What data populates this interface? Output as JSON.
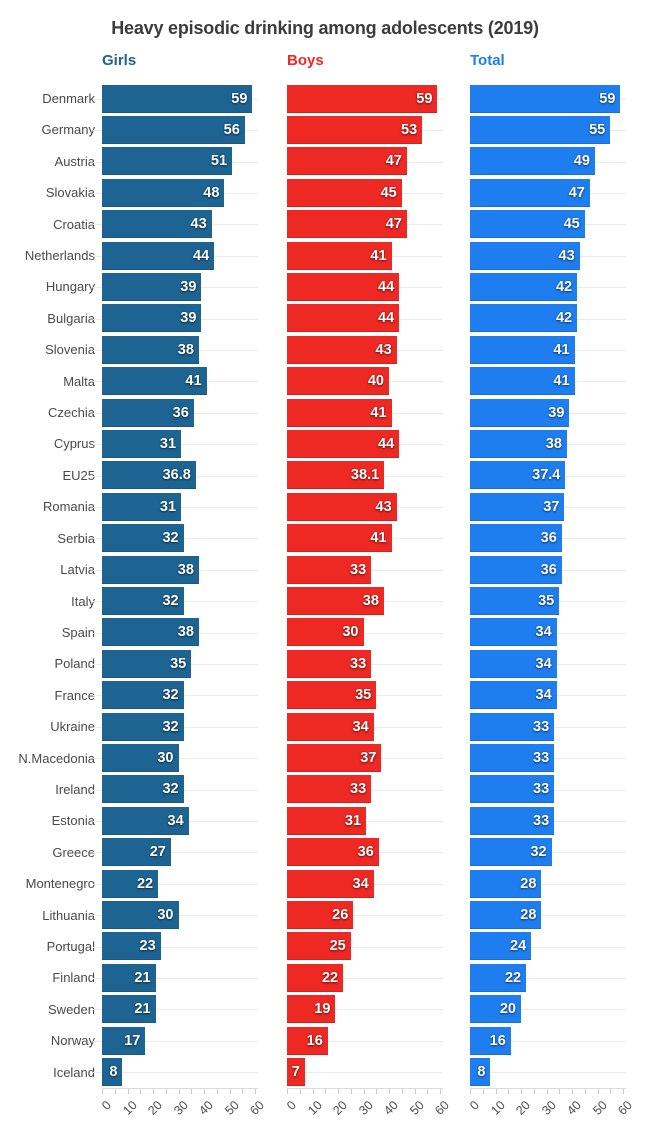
{
  "title": "Heavy episodic drinking among adolescents (2019)",
  "colors": {
    "girls": "#1d6492",
    "boys": "#ee2822",
    "total": "#1e7ef0",
    "title_text": "#3c3c3c",
    "category_text": "#4a4a4a",
    "tick_text": "#4d4d4d",
    "guide_line": "#ebebeb"
  },
  "chart_data": {
    "type": "bar",
    "orientation": "horizontal",
    "title": "Heavy episodic drinking among adolescents (2019)",
    "xlabel": "",
    "ylabel": "",
    "xlim": [
      0,
      60
    ],
    "xticks": [
      0,
      10,
      20,
      30,
      40,
      50,
      60
    ],
    "minor_tick_step": 5,
    "grid": "horizontal-row-guides",
    "legend_position": "column-headers-top",
    "value_labels": "inside-end",
    "categories": [
      "Denmark",
      "Germany",
      "Austria",
      "Slovakia",
      "Croatia",
      "Netherlands",
      "Hungary",
      "Bulgaria",
      "Slovenia",
      "Malta",
      "Czechia",
      "Cyprus",
      "EU25",
      "Romania",
      "Serbia",
      "Latvia",
      "Italy",
      "Spain",
      "Poland",
      "France",
      "Ukraine",
      "N.Macedonia",
      "Ireland",
      "Estonia",
      "Greece",
      "Montenegro",
      "Lithuania",
      "Portugal",
      "Finland",
      "Sweden",
      "Norway",
      "Iceland"
    ],
    "series": [
      {
        "name": "Girls",
        "color": "#1d6492",
        "values": [
          59,
          56,
          51,
          48,
          43,
          44,
          39,
          39,
          38,
          41,
          36,
          31,
          36.8,
          31,
          32,
          38,
          32,
          38,
          35,
          32,
          32,
          30,
          32,
          34,
          27,
          22,
          30,
          23,
          21,
          21,
          17,
          8
        ]
      },
      {
        "name": "Boys",
        "color": "#ee2822",
        "values": [
          59,
          53,
          47,
          45,
          47,
          41,
          44,
          44,
          43,
          40,
          41,
          44,
          38.1,
          43,
          41,
          33,
          38,
          30,
          33,
          35,
          34,
          37,
          33,
          31,
          36,
          34,
          26,
          25,
          22,
          19,
          16,
          7
        ]
      },
      {
        "name": "Total",
        "color": "#1e7ef0",
        "values": [
          59,
          55,
          49,
          47,
          45,
          43,
          42,
          42,
          41,
          41,
          39,
          38,
          37.4,
          37,
          36,
          36,
          35,
          34,
          34,
          34,
          33,
          33,
          33,
          33,
          32,
          28,
          28,
          24,
          22,
          20,
          16,
          8
        ]
      }
    ]
  }
}
